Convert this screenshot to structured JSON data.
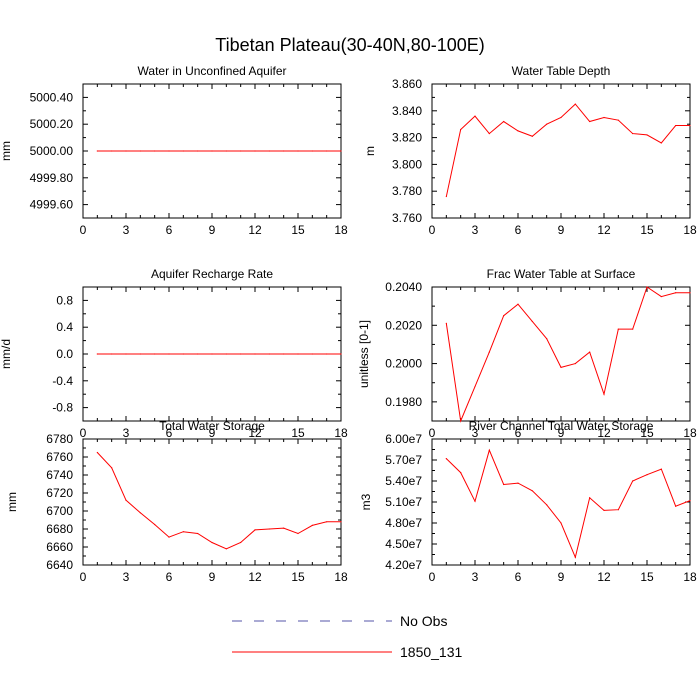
{
  "figure": {
    "title": "Tibetan Plateau(30-40N,80-100E)"
  },
  "colors": {
    "model": "#ff0000",
    "obs": "#5555aa",
    "axis": "#000000"
  },
  "legend": {
    "entries": [
      {
        "label": "No Obs",
        "style": "dashed",
        "color": "#5555aa"
      },
      {
        "label": "1850_131",
        "style": "solid",
        "color": "#ff0000"
      }
    ]
  },
  "chart_data": [
    {
      "type": "line",
      "title": "Water in Unconfined Aquifer",
      "ylabel": "mm",
      "xlim": [
        0,
        18
      ],
      "ylim": [
        4999.5,
        5000.5
      ],
      "xticks": [
        "0",
        "3",
        "6",
        "9",
        "12",
        "15",
        "18"
      ],
      "yticks": [
        {
          "value": 4999.6,
          "label": "4999.60"
        },
        {
          "value": 4999.8,
          "label": "4999.80"
        },
        {
          "value": 5000.0,
          "label": "5000.00"
        },
        {
          "value": 5000.2,
          "label": "5000.20"
        },
        {
          "value": 5000.4,
          "label": "5000.40"
        }
      ],
      "series": [
        {
          "name": "1850_131",
          "x": [
            1,
            2,
            3,
            4,
            5,
            6,
            7,
            8,
            9,
            10,
            11,
            12,
            13,
            14,
            15,
            16,
            17,
            18
          ],
          "values": [
            5000,
            5000,
            5000,
            5000,
            5000,
            5000,
            5000,
            5000,
            5000,
            5000,
            5000,
            5000,
            5000,
            5000,
            5000,
            5000,
            5000,
            5000
          ]
        }
      ]
    },
    {
      "type": "line",
      "title": "Water Table Depth",
      "ylabel": "m",
      "xlim": [
        0,
        18
      ],
      "ylim": [
        3.76,
        3.86
      ],
      "xticks": [
        "0",
        "3",
        "6",
        "9",
        "12",
        "15",
        "18"
      ],
      "yticks": [
        {
          "value": 3.76,
          "label": "3.760"
        },
        {
          "value": 3.78,
          "label": "3.780"
        },
        {
          "value": 3.8,
          "label": "3.800"
        },
        {
          "value": 3.82,
          "label": "3.820"
        },
        {
          "value": 3.84,
          "label": "3.840"
        },
        {
          "value": 3.86,
          "label": "3.860"
        }
      ],
      "series": [
        {
          "name": "1850_131",
          "x": [
            1,
            2,
            3,
            4,
            5,
            6,
            7,
            8,
            9,
            10,
            11,
            12,
            13,
            14,
            15,
            16,
            17,
            18
          ],
          "values": [
            3.776,
            3.826,
            3.836,
            3.823,
            3.832,
            3.825,
            3.821,
            3.83,
            3.835,
            3.845,
            3.832,
            3.835,
            3.833,
            3.823,
            3.822,
            3.816,
            3.829,
            3.829
          ]
        }
      ]
    },
    {
      "type": "line",
      "title": "Aquifer Recharge Rate",
      "ylabel": "mm/d",
      "xlim": [
        0,
        18
      ],
      "ylim": [
        -1.0,
        1.0
      ],
      "xticks": [
        "0",
        "3",
        "6",
        "9",
        "12",
        "15",
        "18"
      ],
      "yticks": [
        {
          "value": -0.8,
          "label": "-0.8"
        },
        {
          "value": -0.4,
          "label": "-0.4"
        },
        {
          "value": 0.0,
          "label": "0.0"
        },
        {
          "value": 0.4,
          "label": "0.4"
        },
        {
          "value": 0.8,
          "label": "0.8"
        }
      ],
      "series": [
        {
          "name": "1850_131",
          "x": [
            1,
            2,
            3,
            4,
            5,
            6,
            7,
            8,
            9,
            10,
            11,
            12,
            13,
            14,
            15,
            16,
            17,
            18
          ],
          "values": [
            0,
            0,
            0,
            0,
            0,
            0,
            0,
            0,
            0,
            0,
            0,
            0,
            0,
            0,
            0,
            0,
            0,
            0
          ]
        }
      ]
    },
    {
      "type": "line",
      "title": "Frac Water Table at Surface",
      "ylabel": "unitless [0-1]",
      "xlim": [
        0,
        18
      ],
      "ylim": [
        0.197,
        0.204
      ],
      "xticks": [
        "0",
        "3",
        "6",
        "9",
        "12",
        "15",
        "18"
      ],
      "yticks": [
        {
          "value": 0.198,
          "label": "0.1980"
        },
        {
          "value": 0.2,
          "label": "0.2000"
        },
        {
          "value": 0.202,
          "label": "0.2020"
        },
        {
          "value": 0.204,
          "label": "0.2040"
        }
      ],
      "series": [
        {
          "name": "1850_131",
          "x": [
            1,
            2,
            3,
            4,
            5,
            6,
            7,
            8,
            9,
            10,
            11,
            12,
            13,
            14,
            15,
            16,
            17,
            18
          ],
          "values": [
            0.2021,
            0.197,
            0.1988,
            0.2006,
            0.2025,
            0.2031,
            0.2022,
            0.2013,
            0.1998,
            0.2,
            0.2006,
            0.1984,
            0.2018,
            0.2018,
            0.204,
            0.2035,
            0.2037,
            0.2037
          ]
        }
      ]
    },
    {
      "type": "line",
      "title": "Total Water Storage",
      "ylabel": "mm",
      "xlim": [
        0,
        18
      ],
      "ylim": [
        6640,
        6780
      ],
      "xticks": [
        "0",
        "3",
        "6",
        "9",
        "12",
        "15",
        "18"
      ],
      "yticks": [
        {
          "value": 6640,
          "label": "6640"
        },
        {
          "value": 6660,
          "label": "6660"
        },
        {
          "value": 6680,
          "label": "6680"
        },
        {
          "value": 6700,
          "label": "6700"
        },
        {
          "value": 6720,
          "label": "6720"
        },
        {
          "value": 6740,
          "label": "6740"
        },
        {
          "value": 6760,
          "label": "6760"
        },
        {
          "value": 6780,
          "label": "6780"
        }
      ],
      "series": [
        {
          "name": "1850_131",
          "x": [
            1,
            2,
            3,
            4,
            5,
            6,
            7,
            8,
            9,
            10,
            11,
            12,
            13,
            14,
            15,
            16,
            17,
            18
          ],
          "values": [
            6765,
            6748,
            6712,
            6698,
            6685,
            6671,
            6677,
            6675,
            6665,
            6658,
            6665,
            6679,
            6680,
            6681,
            6675,
            6684,
            6688,
            6688
          ]
        }
      ]
    },
    {
      "type": "line",
      "title": "River Channel Total Water Storage",
      "ylabel": "m3",
      "xlim": [
        0,
        18
      ],
      "ylim": [
        42000000,
        60000000
      ],
      "xticks": [
        "0",
        "3",
        "6",
        "9",
        "12",
        "15",
        "18"
      ],
      "yticks": [
        {
          "value": 42000000,
          "label": "4.20e7"
        },
        {
          "value": 45000000,
          "label": "4.50e7"
        },
        {
          "value": 48000000,
          "label": "4.80e7"
        },
        {
          "value": 51000000,
          "label": "5.10e7"
        },
        {
          "value": 54000000,
          "label": "5.40e7"
        },
        {
          "value": 57000000,
          "label": "5.70e7"
        },
        {
          "value": 60000000,
          "label": "6.00e7"
        }
      ],
      "series": [
        {
          "name": "1850_131",
          "x": [
            1,
            2,
            3,
            4,
            5,
            6,
            7,
            8,
            9,
            10,
            11,
            12,
            13,
            14,
            15,
            16,
            17,
            18
          ],
          "values": [
            57200000,
            55200000,
            51100000,
            58400000,
            53500000,
            53700000,
            52600000,
            50600000,
            48000000,
            43100000,
            51600000,
            49800000,
            49900000,
            54000000,
            54900000,
            55700000,
            50400000,
            51200000
          ]
        }
      ]
    }
  ]
}
